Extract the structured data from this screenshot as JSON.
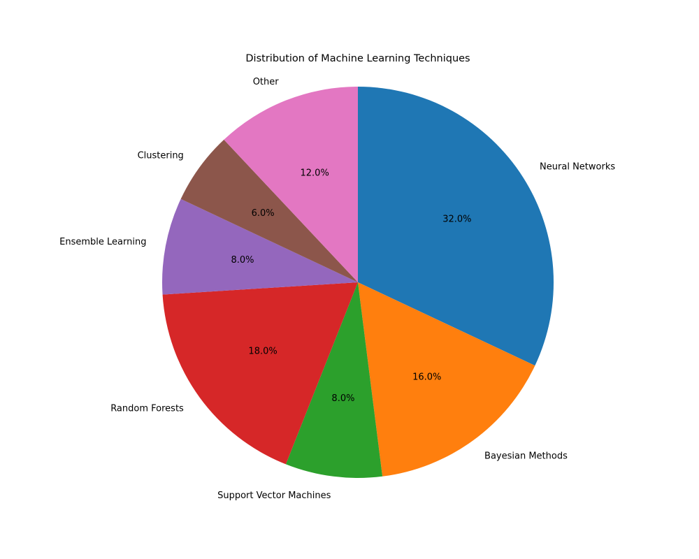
{
  "chart_data": {
    "type": "pie",
    "title": "Distribution of Machine Learning Techniques",
    "start_angle_deg": 90,
    "direction": "clockwise",
    "slices": [
      {
        "label": "Neural Networks",
        "value": 32,
        "pct_label": "32.0%",
        "color": "#1f77b4"
      },
      {
        "label": "Bayesian Methods",
        "value": 16,
        "pct_label": "16.0%",
        "color": "#ff7f0e"
      },
      {
        "label": "Support Vector Machines",
        "value": 8,
        "pct_label": "8.0%",
        "color": "#2ca02c"
      },
      {
        "label": "Random Forests",
        "value": 18,
        "pct_label": "18.0%",
        "color": "#d62728"
      },
      {
        "label": "Ensemble Learning",
        "value": 8,
        "pct_label": "8.0%",
        "color": "#9467bd"
      },
      {
        "label": "Clustering",
        "value": 6,
        "pct_label": "6.0%",
        "color": "#8c564b"
      },
      {
        "label": "Other",
        "value": 12,
        "pct_label": "12.0%",
        "color": "#e377c2"
      }
    ]
  }
}
